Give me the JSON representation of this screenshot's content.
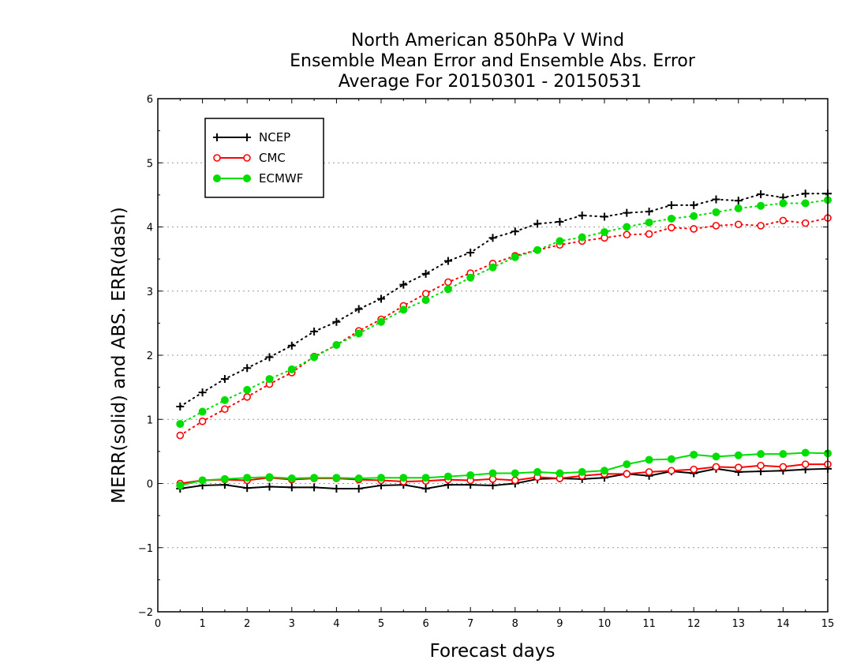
{
  "chart_data": {
    "type": "line",
    "title_lines": [
      "North American 850hPa V Wind",
      "Ensemble Mean Error and Ensemble Abs. Error",
      "Average For 20150301 - 20150531"
    ],
    "xlabel": "Forecast days",
    "ylabel": "MERR(solid) and ABS. ERR(dash)",
    "xlim": [
      0,
      15
    ],
    "ylim": [
      -2,
      6
    ],
    "xticks": [
      "0",
      "1",
      "2",
      "3",
      "4",
      "5",
      "6",
      "7",
      "8",
      "9",
      "10",
      "11",
      "12",
      "13",
      "14",
      "15"
    ],
    "yticks": [
      "−2",
      "−1",
      "0",
      "1",
      "2",
      "3",
      "4",
      "5",
      "6"
    ],
    "grid": "horizontal dotted",
    "legend_position": "top-left",
    "x": [
      0.5,
      1,
      1.5,
      2,
      2.5,
      3,
      3.5,
      4,
      4.5,
      5,
      5.5,
      6,
      6.5,
      7,
      7.5,
      8,
      8.5,
      9,
      9.5,
      10,
      10.5,
      11,
      11.5,
      12,
      12.5,
      13,
      13.5,
      14,
      14.5,
      15
    ],
    "series": [
      {
        "name": "NCEP",
        "color": "#000000",
        "marker": "plus",
        "merr": [
          -0.08,
          -0.03,
          -0.02,
          -0.07,
          -0.05,
          -0.06,
          -0.06,
          -0.08,
          -0.08,
          -0.03,
          -0.02,
          -0.08,
          -0.02,
          -0.02,
          -0.03,
          0.0,
          0.07,
          0.08,
          0.07,
          0.09,
          0.15,
          0.12,
          0.19,
          0.16,
          0.23,
          0.18,
          0.19,
          0.2,
          0.22,
          0.23
        ],
        "abs_err": [
          1.2,
          1.42,
          1.63,
          1.8,
          1.97,
          2.15,
          2.37,
          2.52,
          2.72,
          2.88,
          3.1,
          3.27,
          3.47,
          3.6,
          3.83,
          3.93,
          4.05,
          4.08,
          4.18,
          4.16,
          4.22,
          4.24,
          4.34,
          4.34,
          4.43,
          4.41,
          4.51,
          4.46,
          4.52,
          4.52
        ]
      },
      {
        "name": "CMC",
        "color": "#ff0000",
        "marker": "open-circle",
        "merr": [
          0.0,
          0.05,
          0.06,
          0.05,
          0.09,
          0.06,
          0.08,
          0.08,
          0.06,
          0.05,
          0.03,
          0.04,
          0.06,
          0.05,
          0.07,
          0.05,
          0.1,
          0.08,
          0.12,
          0.15,
          0.15,
          0.18,
          0.2,
          0.22,
          0.26,
          0.25,
          0.28,
          0.26,
          0.3,
          0.3
        ],
        "abs_err": [
          0.75,
          0.97,
          1.16,
          1.35,
          1.55,
          1.73,
          1.98,
          2.16,
          2.38,
          2.56,
          2.77,
          2.96,
          3.14,
          3.28,
          3.43,
          3.55,
          3.64,
          3.72,
          3.78,
          3.83,
          3.88,
          3.89,
          3.99,
          3.97,
          4.02,
          4.04,
          4.02,
          4.1,
          4.06,
          4.14
        ]
      },
      {
        "name": "ECMWF",
        "color": "#00dd00",
        "marker": "filled-circle",
        "merr": [
          -0.03,
          0.05,
          0.07,
          0.09,
          0.1,
          0.08,
          0.09,
          0.09,
          0.08,
          0.09,
          0.09,
          0.09,
          0.11,
          0.13,
          0.16,
          0.16,
          0.18,
          0.16,
          0.18,
          0.2,
          0.3,
          0.37,
          0.38,
          0.45,
          0.42,
          0.44,
          0.46,
          0.46,
          0.48,
          0.47
        ],
        "abs_err": [
          0.93,
          1.12,
          1.3,
          1.46,
          1.63,
          1.78,
          1.97,
          2.16,
          2.34,
          2.52,
          2.71,
          2.86,
          3.03,
          3.21,
          3.37,
          3.53,
          3.64,
          3.78,
          3.84,
          3.92,
          4.0,
          4.07,
          4.13,
          4.17,
          4.23,
          4.29,
          4.33,
          4.37,
          4.37,
          4.42
        ]
      }
    ]
  }
}
